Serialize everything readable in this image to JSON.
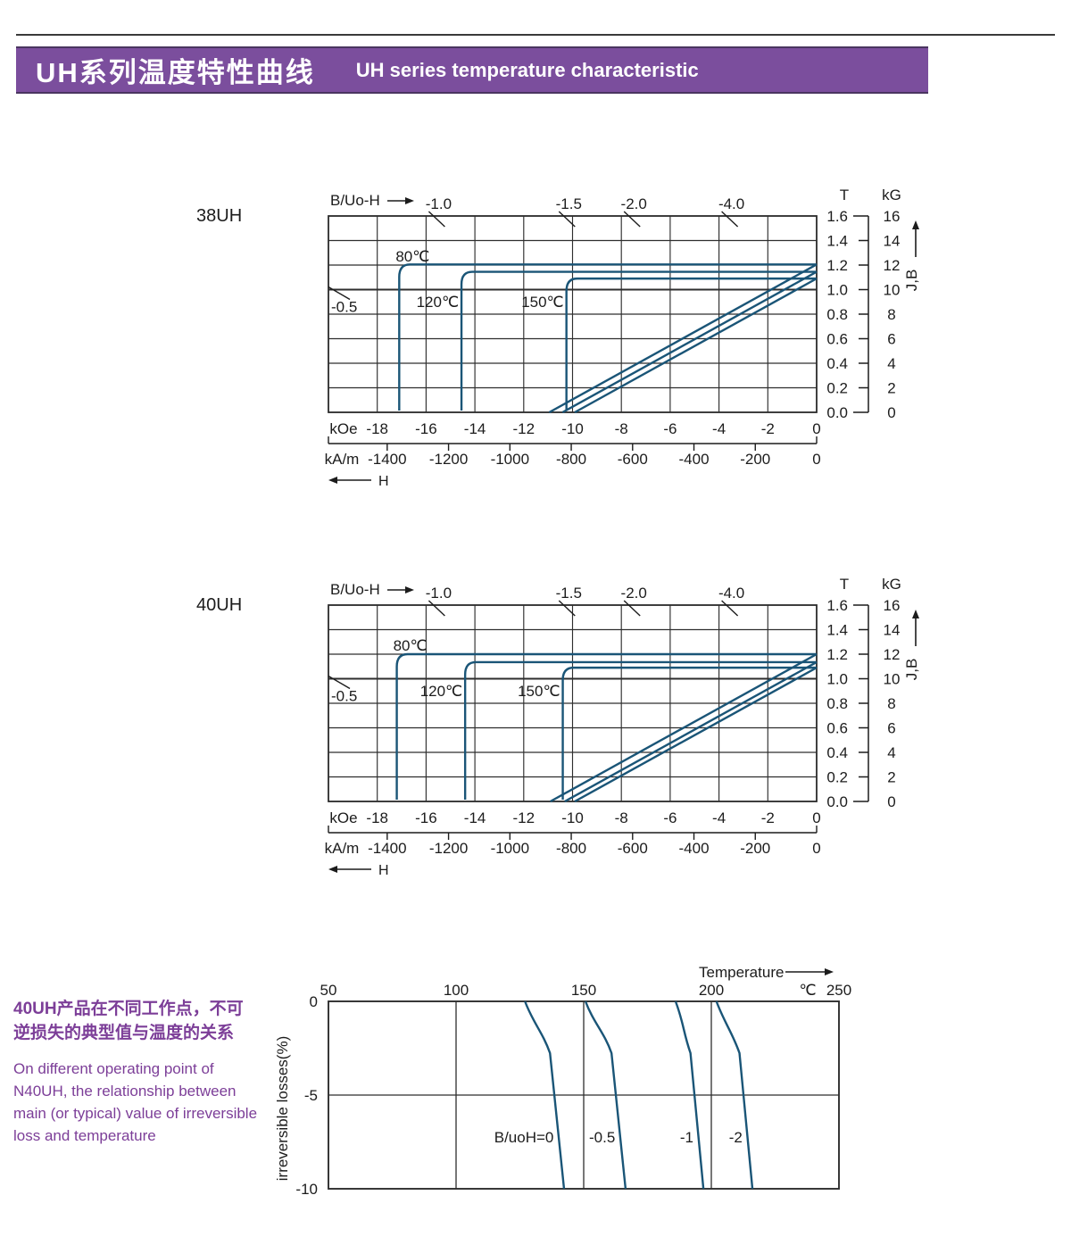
{
  "header": {
    "title_zh": "UH系列温度特性曲线",
    "title_en": "UH series temperature characteristic"
  },
  "colors": {
    "header_purple": "#7b4e9d",
    "note_purple": "#7c3e98",
    "curve_blue": "#1a5577",
    "grid": "#2e2e2e"
  },
  "note": {
    "zh_lines": [
      "40UH产品在不同工作点，不可",
      "逆损失的典型值与温度的关系"
    ],
    "en_lines": [
      "On different operating point of",
      "N40UH,  the relationship between",
      "main (or typical) value of irreversible",
      "loss and temperature"
    ]
  },
  "chart_data": [
    {
      "type": "line",
      "title": "38UH",
      "corner_label": "B/Uo-H",
      "xlabel_primary": "kOe",
      "x_ticks_kOe": [
        -18,
        -16,
        -14,
        -12,
        -10,
        -8,
        -6,
        -4,
        -2,
        0
      ],
      "xlabel_secondary": "kA/m",
      "x_ticks_kAm": [
        -1400,
        -1200,
        -1000,
        -800,
        -600,
        -400,
        -200,
        0
      ],
      "x_arrow_label": "H",
      "x_range_kOe": [
        -20,
        0
      ],
      "ylabel_T": "T",
      "y_ticks_T": [
        "1.6",
        "1.4",
        "1.2",
        "1.0",
        "0.8",
        "0.6",
        "0.4",
        "0.2",
        "0.0"
      ],
      "ylabel_kG": "kG",
      "y_ticks_kG": [
        "16",
        "14",
        "12",
        "10",
        "8",
        "6",
        "4",
        "2",
        "0"
      ],
      "y_range_T": [
        0,
        1.6
      ],
      "y_axis_arrow_label": "J,B",
      "load_lines": [
        {
          "label": "-1.0",
          "slope": -1.0,
          "edge": "top"
        },
        {
          "label": "-1.5",
          "slope": -1.5,
          "edge": "top"
        },
        {
          "label": "-2.0",
          "slope": -2.0,
          "edge": "top"
        },
        {
          "label": "-4.0",
          "slope": -4.0,
          "edge": "top"
        },
        {
          "label": "-0.5",
          "slope": -0.5,
          "edge": "left"
        }
      ],
      "series": [
        {
          "name": "80℃",
          "Br_T": 1.205,
          "knee_H_kOe": -17.1,
          "recoil_slope": 1.1
        },
        {
          "name": "120℃",
          "Br_T": 1.145,
          "knee_H_kOe": -14.55,
          "recoil_slope": 1.1
        },
        {
          "name": "150℃",
          "Br_T": 1.09,
          "knee_H_kOe": -10.25,
          "recoil_slope": 1.1
        }
      ]
    },
    {
      "type": "line",
      "title": "40UH",
      "corner_label": "B/Uo-H",
      "xlabel_primary": "kOe",
      "x_ticks_kOe": [
        -18,
        -16,
        -14,
        -12,
        -10,
        -8,
        -6,
        -4,
        -2,
        0
      ],
      "xlabel_secondary": "kA/m",
      "x_ticks_kAm": [
        -1400,
        -1200,
        -1000,
        -800,
        -600,
        -400,
        -200,
        0
      ],
      "x_arrow_label": "H",
      "x_range_kOe": [
        -20,
        0
      ],
      "ylabel_T": "T",
      "y_ticks_T": [
        "1.6",
        "1.4",
        "1.2",
        "1.0",
        "0.8",
        "0.6",
        "0.4",
        "0.2",
        "0.0"
      ],
      "ylabel_kG": "kG",
      "y_ticks_kG": [
        "16",
        "14",
        "12",
        "10",
        "8",
        "6",
        "4",
        "2",
        "0"
      ],
      "y_range_T": [
        0,
        1.6
      ],
      "y_axis_arrow_label": "J,B",
      "load_lines": [
        {
          "label": "-1.0",
          "slope": -1.0,
          "edge": "top"
        },
        {
          "label": "-1.5",
          "slope": -1.5,
          "edge": "top"
        },
        {
          "label": "-2.0",
          "slope": -2.0,
          "edge": "top"
        },
        {
          "label": "-4.0",
          "slope": -4.0,
          "edge": "top"
        },
        {
          "label": "-0.5",
          "slope": -0.5,
          "edge": "left"
        }
      ],
      "series": [
        {
          "name": "80℃",
          "Br_T": 1.2,
          "knee_H_kOe": -17.2,
          "recoil_slope": 1.1
        },
        {
          "name": "120℃",
          "Br_T": 1.135,
          "knee_H_kOe": -14.4,
          "recoil_slope": 1.1
        },
        {
          "name": "150℃",
          "Br_T": 1.09,
          "knee_H_kOe": -10.4,
          "recoil_slope": 1.1
        }
      ]
    },
    {
      "type": "line",
      "title": "40UH irreversible losses vs temperature",
      "xlabel": "Temperature",
      "x_unit": "℃",
      "ylabel": "irreversible  losses(%)",
      "x_ticks": [
        50,
        100,
        150,
        200,
        250
      ],
      "y_ticks": [
        0,
        -5,
        -10
      ],
      "xlim": [
        50,
        250
      ],
      "ylim": [
        -10,
        0
      ],
      "series": [
        {
          "name": "B/uoH=0",
          "points": [
            [
              127,
              0
            ],
            [
              138.5,
              -5
            ],
            [
              142.3,
              -10
            ]
          ]
        },
        {
          "name": "-0.5",
          "points": [
            [
              150.7,
              0
            ],
            [
              162.6,
              -5
            ],
            [
              166.4,
              -10
            ]
          ]
        },
        {
          "name": "-1",
          "points": [
            [
              186,
              0
            ],
            [
              193.4,
              -5
            ],
            [
              196.9,
              -10
            ]
          ]
        },
        {
          "name": "-2",
          "points": [
            [
              202,
              0
            ],
            [
              212.6,
              -5
            ],
            [
              216.1,
              -10
            ]
          ]
        }
      ]
    }
  ]
}
